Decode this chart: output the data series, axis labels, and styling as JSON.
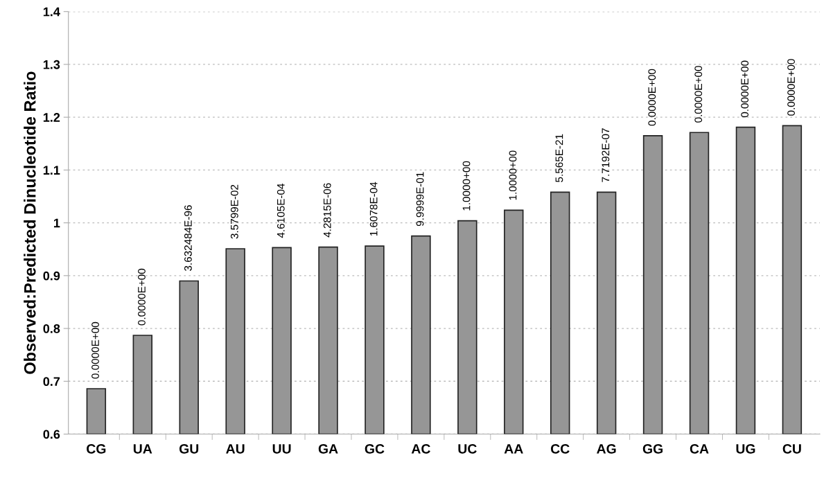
{
  "chart_data": {
    "type": "bar",
    "ylabel": "Observed:Predicted Dinucleotide Ratio",
    "categories": [
      "CG",
      "UA",
      "GU",
      "AU",
      "UU",
      "GA",
      "GC",
      "AC",
      "UC",
      "AA",
      "CC",
      "AG",
      "GG",
      "CA",
      "UG",
      "CU"
    ],
    "values": [
      0.686,
      0.787,
      0.89,
      0.951,
      0.953,
      0.954,
      0.956,
      0.975,
      1.004,
      1.024,
      1.058,
      1.058,
      1.165,
      1.171,
      1.181,
      1.184
    ],
    "annotations": [
      {
        "text": "0.0000E+00",
        "x": "CG",
        "y": 0.686
      },
      {
        "text": "0.0000E+00",
        "x": "UA",
        "y": 0.787
      },
      {
        "text": "3.632484E-96",
        "x": "GU",
        "y": 0.89
      },
      {
        "text": "3.5799E-02",
        "x": "AU",
        "y": 0.951
      },
      {
        "text": "4.6105E-04",
        "x": "UU",
        "y": 0.953
      },
      {
        "text": "4.2815E-06",
        "x": "GA",
        "y": 0.954
      },
      {
        "text": "1.6078E-04",
        "x": "GC",
        "y": 0.956
      },
      {
        "text": "9.9999E-01",
        "x": "AC",
        "y": 0.975
      },
      {
        "text": "1.0000+00",
        "x": "UC",
        "y": 1.004
      },
      {
        "text": "1.0000+00",
        "x": "AA",
        "y": 1.024
      },
      {
        "text": "5.565E-21",
        "x": "CC",
        "y": 1.058
      },
      {
        "text": "7.7192E-07",
        "x": "AG",
        "y": 1.058
      },
      {
        "text": "0.0000E+00",
        "x": "GG",
        "y": 1.165
      },
      {
        "text": "0.0000E+00",
        "x": "CA",
        "y": 1.171
      },
      {
        "text": "0.0000E+00",
        "x": "UG",
        "y": 1.181
      },
      {
        "text": "0.0000E+00",
        "x": "CU",
        "y": 1.184
      }
    ],
    "color": "#969696",
    "ylim": [
      0.6,
      1.4
    ],
    "yticks": [
      0.6,
      0.7,
      0.8,
      0.9,
      1,
      1.1,
      1.2,
      1.3,
      1.4
    ],
    "grid": "y"
  }
}
